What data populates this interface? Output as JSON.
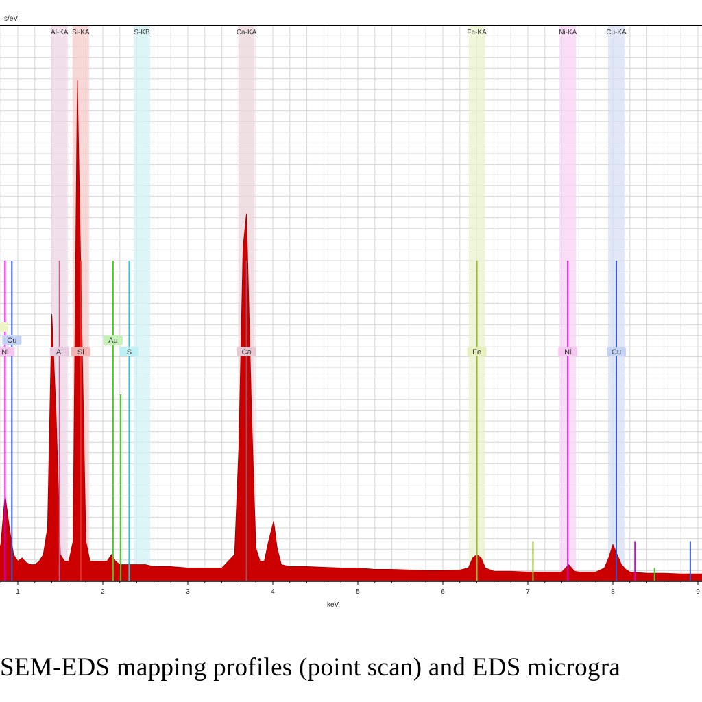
{
  "chart_data": {
    "type": "line",
    "ylabel": "s/eV",
    "xlabel": "keV",
    "xlim": [
      -0.2,
      9.1
    ],
    "x_ticks": [
      "1",
      "2",
      "3",
      "4",
      "5",
      "6",
      "7",
      "8",
      "9"
    ],
    "grid": true,
    "spectrum_color": "#cc0000",
    "series": [
      {
        "x": [
          0.0,
          0.05,
          0.1,
          0.15,
          0.2,
          0.25,
          0.3,
          0.35,
          0.4,
          0.45,
          0.5,
          0.55,
          0.6,
          0.65,
          0.7,
          0.75,
          0.8,
          0.85,
          0.9,
          0.95,
          1.0,
          1.05,
          1.1,
          1.15,
          1.2,
          1.25,
          1.3,
          1.35,
          1.4,
          1.45,
          1.5,
          1.55,
          1.6,
          1.65,
          1.7,
          1.75,
          1.8,
          1.85,
          1.9,
          1.95,
          2.0,
          2.05,
          2.1,
          2.15,
          2.2,
          2.3,
          2.4,
          2.5,
          2.6,
          2.8,
          3.0,
          3.2,
          3.4,
          3.55,
          3.6,
          3.65,
          3.69,
          3.75,
          3.8,
          3.85,
          3.9,
          3.95,
          4.01,
          4.05,
          4.1,
          4.2,
          4.4,
          4.6,
          4.8,
          5.0,
          5.2,
          5.4,
          5.6,
          5.8,
          6.0,
          6.2,
          6.3,
          6.35,
          6.4,
          6.45,
          6.5,
          6.6,
          6.8,
          7.0,
          7.2,
          7.4,
          7.48,
          7.55,
          7.6,
          7.8,
          7.9,
          7.95,
          8.0,
          8.05,
          8.1,
          8.15,
          8.2,
          8.4,
          8.6,
          8.8,
          9.0,
          9.1
        ],
        "y": [
          3,
          3,
          3,
          3,
          2.5,
          2.5,
          2.5,
          2.5,
          2.5,
          2.6,
          3.5,
          2.6,
          2.6,
          2.8,
          3,
          3.8,
          5.5,
          13,
          8,
          4,
          3,
          3.5,
          2.8,
          2.5,
          2.5,
          3,
          4,
          8,
          40,
          25,
          4,
          3,
          3,
          6,
          75,
          40,
          6,
          3,
          3,
          3,
          3,
          3,
          4,
          3,
          2.5,
          2.5,
          2.5,
          2.5,
          2.2,
          2.2,
          2,
          2,
          2,
          4,
          20,
          50,
          55,
          25,
          5,
          3,
          3,
          6,
          9,
          5,
          2.5,
          2.2,
          2.2,
          2.1,
          2,
          2,
          1.8,
          1.8,
          1.7,
          1.6,
          1.6,
          1.7,
          2,
          3.5,
          4,
          3.5,
          2,
          1.5,
          1.5,
          1.4,
          1.4,
          1.4,
          2.5,
          1.5,
          1.4,
          1.4,
          2,
          3.5,
          5.5,
          4,
          2.5,
          1.8,
          1.4,
          1.2,
          1.2,
          1.1,
          1.1,
          1.1
        ]
      }
    ],
    "element_lines": [
      {
        "element": "Ni",
        "x": 0.85,
        "height": 48,
        "color": "#d400d4"
      },
      {
        "element": "Cu",
        "x": 0.93,
        "height": 48,
        "color": "#2f55d8"
      },
      {
        "element": "Al",
        "x": 1.49,
        "height": 48,
        "color": "#c06090"
      },
      {
        "element": "Si",
        "x": 1.74,
        "height": 48,
        "color": "#e03030"
      },
      {
        "element": "Au",
        "x": 2.12,
        "height": 48,
        "color": "#44cc22"
      },
      {
        "element": "Au",
        "x": 2.21,
        "height": 28,
        "color": "#44cc22"
      },
      {
        "element": "S",
        "x": 2.31,
        "height": 48,
        "color": "#22ccdd"
      },
      {
        "element": "Ca",
        "x": 3.69,
        "height": 48,
        "color": "#a05060"
      },
      {
        "element": "Fe",
        "x": 6.4,
        "height": 48,
        "color": "#99bb33"
      },
      {
        "element": "Fe",
        "x": 7.06,
        "height": 6,
        "color": "#99bb33"
      },
      {
        "element": "Ni",
        "x": 7.47,
        "height": 48,
        "color": "#d400d4"
      },
      {
        "element": "Ni",
        "x": 8.26,
        "height": 6,
        "color": "#d400d4"
      },
      {
        "element": "Cu",
        "x": 8.04,
        "height": 48,
        "color": "#2f55d8"
      },
      {
        "element": "Cu",
        "x": 8.91,
        "height": 6,
        "color": "#2f55d8"
      },
      {
        "element": "Au",
        "x": 8.49,
        "height": 2,
        "color": "#44cc22"
      }
    ],
    "bands": [
      {
        "label": "Al-KA",
        "x": 1.49,
        "color": "#ecd6e6"
      },
      {
        "label": "Si-KA",
        "x": 1.74,
        "color": "#f6caca"
      },
      {
        "label": "S-KB",
        "x": 2.46,
        "color": "#d2f2f4"
      },
      {
        "label": "Ca-KA",
        "x": 3.69,
        "color": "#ead4da"
      },
      {
        "label": "Fe-KA",
        "x": 6.4,
        "color": "#eaf2cc"
      },
      {
        "label": "Ni-KA",
        "x": 7.47,
        "color": "#f8d2f4"
      },
      {
        "label": "Cu-KA",
        "x": 8.04,
        "color": "#d8dff6"
      }
    ],
    "tags": [
      {
        "label": "Ni",
        "x": 0.85,
        "row": 2,
        "bg": "#f4c6f0"
      },
      {
        "label": "Cu",
        "x": 0.93,
        "row": 1,
        "bg": "#c4d2f6"
      },
      {
        "label": "Al",
        "x": 1.49,
        "row": 2,
        "bg": "#e8cce0"
      },
      {
        "label": "Si",
        "x": 1.74,
        "row": 2,
        "bg": "#f3b4b4"
      },
      {
        "label": "Au",
        "x": 2.12,
        "row": 1,
        "bg": "#c4f2b4"
      },
      {
        "label": "S",
        "x": 2.31,
        "row": 2,
        "bg": "#bcf0f4"
      },
      {
        "label": "Ca",
        "x": 3.69,
        "row": 2,
        "bg": "#e8c8d0"
      },
      {
        "label": "Fe",
        "x": 6.4,
        "row": 2,
        "bg": "#e6f0bc"
      },
      {
        "label": "Ni",
        "x": 7.47,
        "row": 2,
        "bg": "#f4c6f0"
      },
      {
        "label": "Cu",
        "x": 8.04,
        "row": 2,
        "bg": "#c4d2f6"
      }
    ]
  },
  "caption": "SEM-EDS mapping profiles (point scan) and EDS microgra"
}
